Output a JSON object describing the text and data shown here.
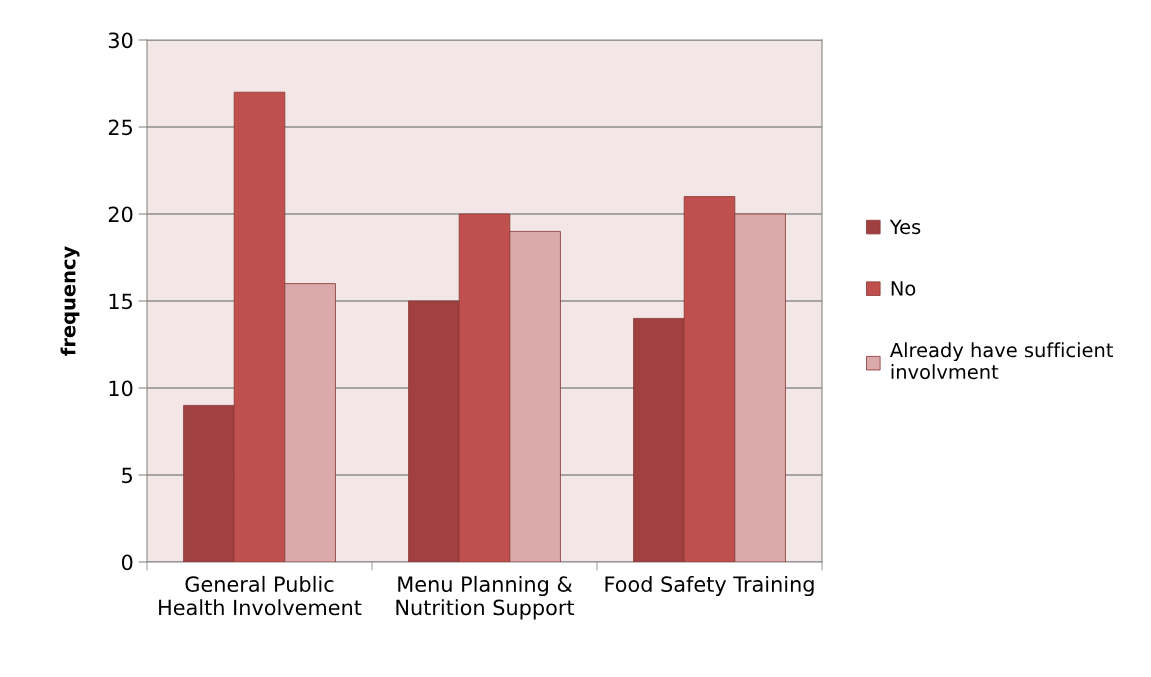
{
  "chart_data": {
    "type": "bar",
    "ylabel": "frequency",
    "categories": [
      "General Public Health Involvement",
      "Menu Planning & Nutrition Support",
      "Food Safety Training"
    ],
    "series": [
      {
        "name": "Yes",
        "color": "#a04040",
        "values": [
          9,
          15,
          14
        ]
      },
      {
        "name": "No",
        "color": "#c0504d",
        "values": [
          27,
          20,
          21
        ]
      },
      {
        "name": "Already have sufficient involvment",
        "color": "#d9aaa9",
        "values": [
          16,
          19,
          20
        ]
      }
    ],
    "ylim": [
      0,
      30
    ],
    "yticks": [
      0,
      5,
      10,
      15,
      20,
      25,
      30
    ],
    "grid": "y",
    "legend": "right"
  }
}
